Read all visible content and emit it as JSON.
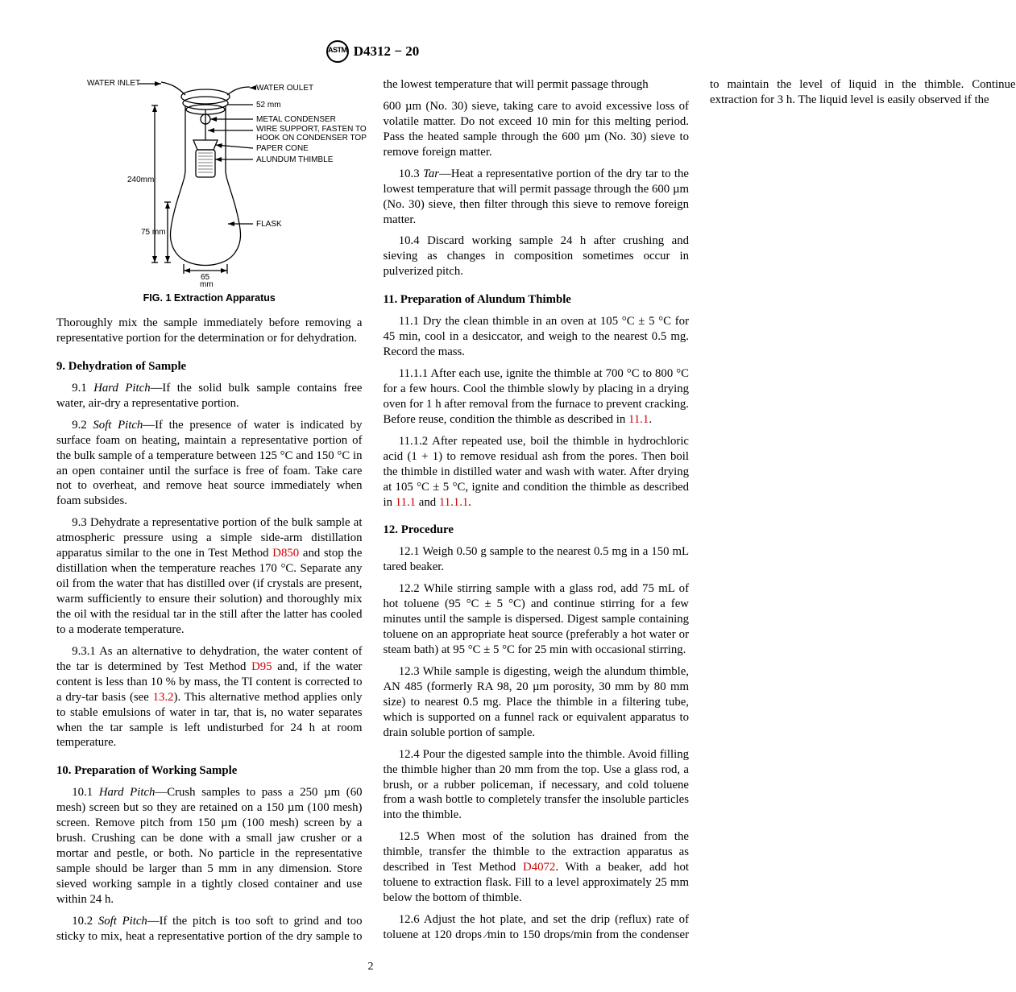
{
  "header": {
    "designation": "D4312 − 20"
  },
  "figure": {
    "caption": "FIG. 1  Extraction Apparatus",
    "labels": {
      "water_inlet": "WATER INLET",
      "water_outlet": "WATER OULET",
      "d52": "52 mm",
      "metal_condenser": "METAL CONDENSER",
      "wire_support": "WIRE SUPPORT, FASTEN TO",
      "wire_support2": "HOOK ON CONDENSER TOP",
      "paper_cone": "PAPER CONE",
      "alundum_thimble": "ALUNDUM THIMBLE",
      "h240": "240mm",
      "h75": "75 mm",
      "flask": "FLASK",
      "w65": "65",
      "w65u": "mm"
    }
  },
  "body": {
    "p_intro": "Thoroughly mix the sample immediately before removing a representative portion for the determination or for dehydration.",
    "s9": "9.  Dehydration of Sample",
    "p9_1": "9.1 Hard Pitch—If the solid bulk sample contains free water, air-dry a representative portion.",
    "p9_2": "9.2 Soft Pitch—If the presence of water is indicated by surface foam on heating, maintain a representative portion of the bulk sample of a temperature between 125 °C and 150 °C in an open container until the surface is free of foam. Take care not to overheat, and remove heat source immediately when foam subsides.",
    "p9_3a": "9.3 Dehydrate a representative portion of the bulk sample at atmospheric pressure using a simple side-arm distillation apparatus similar to the one in Test Method ",
    "p9_3_link1": "D850",
    "p9_3b": " and stop the distillation when the temperature reaches 170 °C. Separate any oil from the water that has distilled over (if crystals are present, warm sufficiently to ensure their solution) and thoroughly mix the oil with the residual tar in the still after the latter has cooled to a moderate temperature.",
    "p9_3_1a": "9.3.1 As an alternative to dehydration, the water content of the tar is determined by Test Method ",
    "p9_3_1_link": "D95",
    "p9_3_1b": " and, if the water content is less than 10 % by mass, the TI content is corrected to a dry-tar basis (see ",
    "p9_3_1_link2": "13.2",
    "p9_3_1c": "). This alternative method applies only to stable emulsions of water in tar, that is, no water separates when the tar sample is left undisturbed for 24 h at room temperature.",
    "s10": "10.  Preparation of Working Sample",
    "p10_1": "10.1 Hard Pitch—Crush samples to pass a 250 µm (60 mesh) screen but so they are retained on a 150 µm (100 mesh) screen. Remove pitch from 150 µm (100 mesh) screen by a brush. Crushing can be done with a small jaw crusher or a mortar and pestle, or both. No particle in the representative sample should be larger than 5 mm in any dimension. Store sieved working sample in a tightly closed container and use within 24 h.",
    "p10_2": "10.2 Soft Pitch—If the pitch is too soft to grind and too sticky to mix, heat a representative portion of the dry sample to the lowest temperature that will permit passage through",
    "p10_2b": "600 µm (No. 30) sieve, taking care to avoid excessive loss of volatile matter. Do not exceed 10 min for this melting period. Pass the heated sample through the 600 µm (No. 30) sieve to remove foreign matter.",
    "p10_3": "10.3 Tar—Heat a representative portion of the dry tar to the lowest temperature that will permit passage through the 600 µm (No. 30) sieve, then filter through this sieve to remove foreign matter.",
    "p10_4": "10.4 Discard working sample 24 h after crushing and sieving as changes in composition sometimes occur in pulverized pitch.",
    "s11": "11.  Preparation of Alundum Thimble",
    "p11_1": "11.1 Dry the clean thimble in an oven at 105 °C ± 5 °C for 45 min, cool in a desiccator, and weigh to the nearest 0.5 mg. Record the mass.",
    "p11_1_1a": "11.1.1 After each use, ignite the thimble at 700 °C to 800 °C for a few hours. Cool the thimble slowly by placing in a drying oven for 1 h after removal from the furnace to prevent cracking. Before reuse, condition the thimble as described in ",
    "p11_1_1_link": "11.1",
    "p11_1_1b": ".",
    "p11_1_2a": "11.1.2 After repeated use, boil the thimble in hydrochloric acid (1 + 1) to remove residual ash from the pores. Then boil the thimble in distilled water and wash with water. After drying at 105 °C ± 5 °C, ignite and condition the thimble as described in ",
    "p11_1_2_link1": "11.1",
    "p11_1_2_mid": " and ",
    "p11_1_2_link2": "11.1.1",
    "p11_1_2b": ".",
    "s12": "12.  Procedure",
    "p12_1": "12.1 Weigh 0.50 g sample to the nearest 0.5 mg in a 150 mL tared beaker.",
    "p12_2": "12.2 While stirring sample with a glass rod, add 75 mL of hot toluene (95 °C ± 5 °C) and continue stirring for a few minutes until the sample is dispersed. Digest sample containing toluene on an appropriate heat source (preferably a hot water or steam bath) at 95 °C ± 5 °C for 25 min with occasional stirring.",
    "p12_3": "12.3 While sample is digesting, weigh the alundum thimble, AN 485 (formerly RA 98, 20 µm porosity, 30 mm by 80 mm size) to nearest 0.5 mg. Place the thimble in a filtering tube, which is supported on a funnel rack or equivalent apparatus to drain soluble portion of sample.",
    "p12_4": "12.4 Pour the digested sample into the thimble. Avoid filling the thimble higher than 20 mm from the top. Use a glass rod, a brush, or a rubber policeman, if necessary, and cold toluene from a wash bottle to completely transfer the insoluble particles into the thimble.",
    "p12_5a": "12.5 When most of the solution has drained from the thimble, transfer the thimble to the extraction apparatus as described in Test Method ",
    "p12_5_link": "D4072",
    "p12_5b": ". With a beaker, add hot toluene to extraction flask. Fill to a level approximately 25 mm below the bottom of thimble.",
    "p12_6": "12.6 Adjust the hot plate, and set the drip (reflux) rate of toluene at 120 drops ⁄min to 150 drops/min from the condenser to maintain the level of liquid in the thimble. Continue extraction for 3 h. The liquid level is easily observed if the"
  },
  "page_number": "2"
}
